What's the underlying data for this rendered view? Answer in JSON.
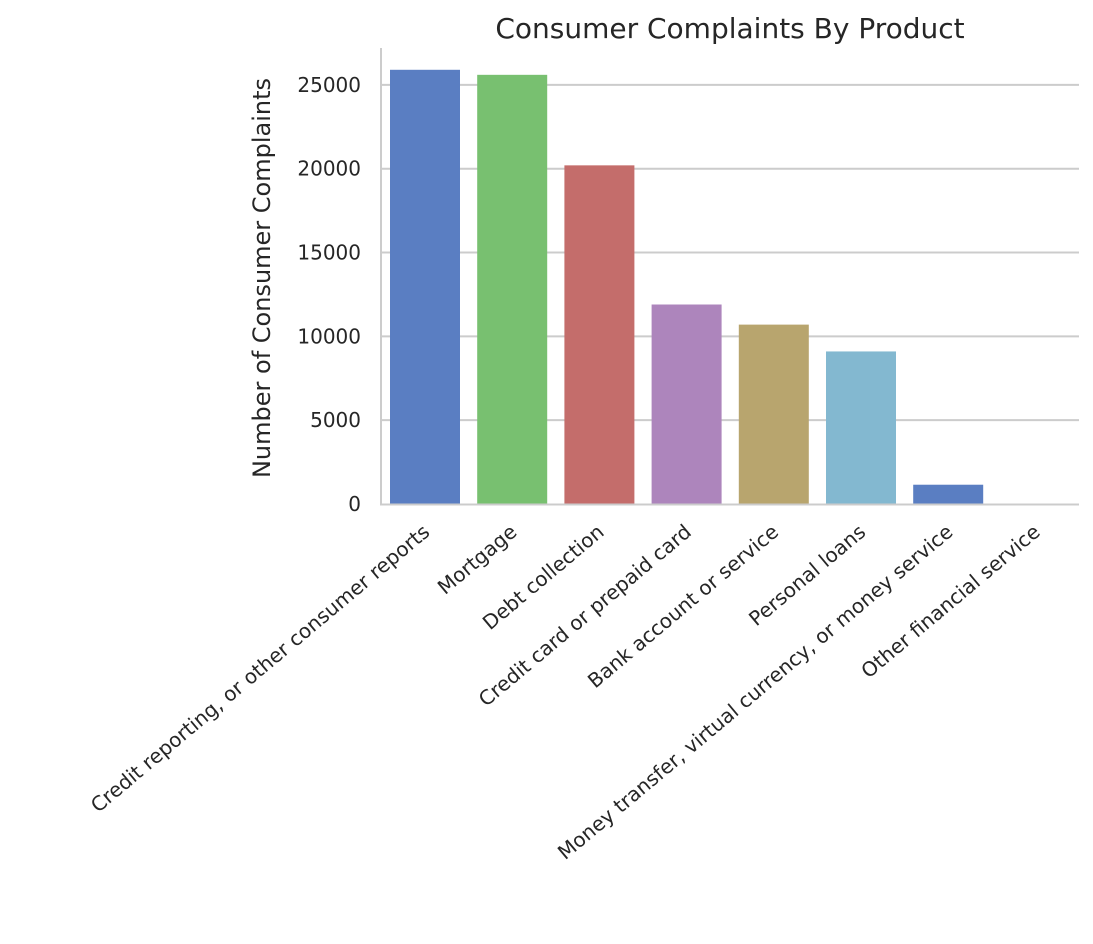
{
  "chart_data": {
    "type": "bar",
    "title": "Consumer Complaints By Product",
    "xlabel": "",
    "ylabel": "Number of Consumer Complaints",
    "ylim": [
      0,
      27200
    ],
    "yticks": [
      0,
      5000,
      10000,
      15000,
      20000,
      25000
    ],
    "grid": "horizontal",
    "categories": [
      "Credit reporting, or other consumer reports",
      "Mortgage",
      "Debt collection",
      "Credit card or prepaid card",
      "Bank account or service",
      "Personal loans",
      "Money transfer, virtual currency, or money service",
      "Other financial service"
    ],
    "values": [
      25900,
      25600,
      20200,
      11900,
      10700,
      9100,
      1150,
      15
    ],
    "colors": [
      "#5a7ec2",
      "#78c070",
      "#c46d6b",
      "#ad85bc",
      "#b8a56e",
      "#83b8d0",
      "#5a7ec2",
      "#78c070"
    ]
  }
}
